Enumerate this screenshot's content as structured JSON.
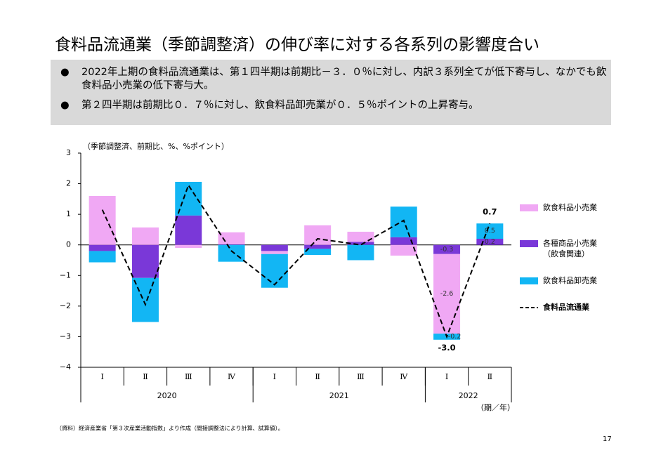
{
  "title": "食料品流通業（季節調整済）の伸び率に対する各系列の影響度合い",
  "bullets": [
    "2022年上期の食料品流通業は、第１四半期は前期比－３．０％に対し、内訳３系列全てが低下寄与し、なかでも飲食料品小売業の低下寄与大。",
    "第２四半期は前期比０．７％に対し、飲食料品卸売業が０．５％ポイントの上昇寄与。"
  ],
  "source": "（資料）経済産業省「第３次産業活動指数」より作成（間接調整法により計算、試算値）。",
  "page_number": "17",
  "chart_data": {
    "type": "bar",
    "y_axis_label": "（季節調整済、前期比、%、%ポイント）",
    "x_axis_label": "（期／年）",
    "categories": [
      "Ⅰ",
      "Ⅱ",
      "Ⅲ",
      "Ⅳ",
      "Ⅰ",
      "Ⅱ",
      "Ⅲ",
      "Ⅳ",
      "Ⅰ",
      "Ⅱ"
    ],
    "x_groups": [
      {
        "label": "2020",
        "span": 4
      },
      {
        "label": "2021",
        "span": 4
      },
      {
        "label": "2022",
        "span": 2
      }
    ],
    "ylim": [
      -4,
      3
    ],
    "yticks": [
      {
        "value": -4,
        "label": "−4"
      },
      {
        "value": -3,
        "label": "−3"
      },
      {
        "value": -2,
        "label": "−2"
      },
      {
        "value": -1,
        "label": "−1"
      },
      0,
      1,
      2,
      3
    ],
    "series": [
      {
        "name": "飲食料品小売業",
        "color": "#f0a8f4",
        "values": [
          1.6,
          0.57,
          -0.1,
          0.39,
          -0.1,
          0.64,
          0.33,
          -0.35,
          -2.6,
          0.0
        ],
        "value_labels": [
          null,
          null,
          null,
          null,
          null,
          null,
          null,
          null,
          "-2.6",
          null
        ]
      },
      {
        "name": "各種商品小売業（飲食関連）",
        "color": "#7a38d8",
        "values": [
          -0.2,
          -1.08,
          0.96,
          0.02,
          -0.2,
          -0.13,
          0.1,
          0.25,
          -0.3,
          0.2
        ],
        "value_labels": [
          null,
          null,
          null,
          null,
          null,
          null,
          null,
          null,
          "-0.3",
          "0.2"
        ]
      },
      {
        "name": "飲食料品卸売業",
        "color": "#12b6f4",
        "values": [
          -0.37,
          -1.44,
          1.1,
          -0.55,
          -1.1,
          -0.2,
          -0.5,
          1.0,
          -0.2,
          0.5
        ],
        "value_labels": [
          null,
          null,
          null,
          null,
          null,
          null,
          null,
          null,
          "-0.2",
          "0.5"
        ]
      },
      {
        "name": "食料品流通業",
        "type": "line",
        "color": "#000000",
        "values": [
          1.15,
          -1.95,
          1.95,
          -0.2,
          -1.3,
          0.2,
          0.0,
          0.8,
          -3.0,
          0.7
        ],
        "value_labels": [
          null,
          null,
          null,
          null,
          null,
          null,
          null,
          null,
          "-3.0",
          "0.7"
        ]
      }
    ]
  }
}
